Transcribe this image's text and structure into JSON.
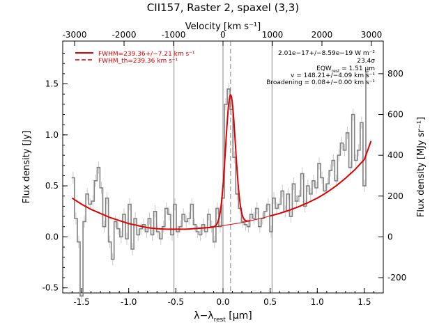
{
  "chart_data": {
    "type": "line",
    "title": "CII157, Raster 2, spaxel (3,3)",
    "xlabel": "λ−λ",
    "xlabel_sub": "rest",
    "xlabel_unit": " [μm]",
    "ylabel": "Flux density [Jy]",
    "top_axis_label": "Velocity [km s⁻¹]",
    "right_axis_label": "Flux density [MJy sr⁻¹]",
    "xlim": [
      -1.7,
      1.7
    ],
    "ylim": [
      -0.55,
      1.92
    ],
    "top_xlim": [
      -3240,
      3240
    ],
    "right_ylim": [
      -275,
      960
    ],
    "x_ticks": [
      "-1.5",
      "-1.0",
      "-0.5",
      "0.0",
      "0.5",
      "1.0",
      "1.5"
    ],
    "x_tick_values": [
      -1.5,
      -1.0,
      -0.5,
      0.0,
      0.5,
      1.0,
      1.5
    ],
    "y_ticks": [
      "-0.5",
      "0.0",
      "0.5",
      "1.0",
      "1.5"
    ],
    "y_tick_values": [
      -0.5,
      0.0,
      0.5,
      1.0,
      1.5
    ],
    "top_ticks": [
      "-3000",
      "-2000",
      "-1000",
      "0",
      "1000",
      "2000",
      "3000"
    ],
    "top_tick_values": [
      -3000,
      -2000,
      -1000,
      0,
      1000,
      2000,
      3000
    ],
    "right_ticks": [
      "-200",
      "0",
      "200",
      "400",
      "600",
      "800"
    ],
    "right_tick_values": [
      -200,
      0,
      200,
      400,
      600,
      800
    ],
    "vertical_lines": [
      -0.52,
      0.0,
      0.52
    ],
    "dashed_vertical_line": 0.08,
    "legend": [
      {
        "label": "FWHM=239.36+/−7.21 km s⁻¹",
        "style": "solid"
      },
      {
        "label": "FWHM_th=239.36 km s⁻¹",
        "style": "dashed"
      }
    ],
    "annotations": [
      "2.01e−17+/−8.59e−19 W m⁻²",
      "23.4σ",
      "EQW",
      "rest",
      " = 1.51 μm",
      "v = 148.21+/−4.09 km s⁻¹",
      "Broadening = 0.08+/−0.00 km s⁻¹"
    ],
    "series": [
      {
        "style": "step",
        "x": [
          -1.59,
          -1.56,
          -1.53,
          -1.5,
          -1.47,
          -1.44,
          -1.41,
          -1.38,
          -1.35,
          -1.32,
          -1.29,
          -1.26,
          -1.23,
          -1.2,
          -1.17,
          -1.14,
          -1.11,
          -1.08,
          -1.05,
          -1.02,
          -0.99,
          -0.96,
          -0.93,
          -0.9,
          -0.87,
          -0.84,
          -0.81,
          -0.78,
          -0.75,
          -0.72,
          -0.69,
          -0.66,
          -0.63,
          -0.6,
          -0.57,
          -0.54,
          -0.51,
          -0.48,
          -0.45,
          -0.42,
          -0.39,
          -0.36,
          -0.33,
          -0.3,
          -0.27,
          -0.24,
          -0.21,
          -0.18,
          -0.15,
          -0.12,
          -0.09,
          -0.06,
          -0.03,
          0.0,
          0.03,
          0.06,
          0.09,
          0.12,
          0.15,
          0.18,
          0.21,
          0.24,
          0.27,
          0.3,
          0.33,
          0.36,
          0.39,
          0.42,
          0.45,
          0.48,
          0.51,
          0.54,
          0.57,
          0.6,
          0.63,
          0.66,
          0.69,
          0.72,
          0.75,
          0.78,
          0.81,
          0.84,
          0.87,
          0.9,
          0.93,
          0.96,
          0.99,
          1.02,
          1.05,
          1.08,
          1.11,
          1.14,
          1.17,
          1.2,
          1.23,
          1.26,
          1.29,
          1.32,
          1.35,
          1.38,
          1.41,
          1.44,
          1.47,
          1.5,
          1.53
        ],
        "values": [
          0.58,
          0.18,
          -0.05,
          -0.58,
          0.15,
          0.42,
          0.32,
          0.35,
          0.55,
          0.68,
          0.48,
          0.1,
          0.38,
          -0.05,
          -0.22,
          0.15,
          0.08,
          0.0,
          0.22,
          -0.02,
          0.32,
          -0.12,
          0.18,
          0.02,
          0.08,
          0.12,
          0.05,
          0.18,
          0.02,
          0.25,
          0.05,
          -0.02,
          0.1,
          0.28,
          0.22,
          0.02,
          0.32,
          0.05,
          0.1,
          0.22,
          0.15,
          0.18,
          0.32,
          0.12,
          0.05,
          0.02,
          0.12,
          0.05,
          0.22,
          0.1,
          -0.05,
          0.28,
          0.1,
          0.38,
          1.3,
          1.45,
          1.25,
          0.78,
          0.42,
          0.28,
          0.15,
          0.12,
          0.1,
          0.22,
          0.18,
          0.28,
          0.1,
          0.18,
          0.25,
          0.32,
          0.05,
          0.38,
          0.28,
          0.32,
          0.45,
          0.25,
          0.42,
          0.2,
          0.52,
          0.35,
          0.4,
          0.62,
          0.3,
          0.5,
          0.42,
          0.55,
          0.48,
          0.72,
          0.58,
          0.45,
          0.52,
          0.65,
          0.75,
          0.55,
          0.8,
          0.92,
          0.85,
          1.02,
          0.68,
          1.2,
          0.75,
          0.85,
          1.12,
          0.5,
          1.62
        ],
        "error": 0.06
      },
      {
        "style": "fit",
        "x": [
          -1.6,
          -1.5,
          -1.4,
          -1.3,
          -1.2,
          -1.1,
          -1.0,
          -0.9,
          -0.8,
          -0.7,
          -0.6,
          -0.5,
          -0.4,
          -0.3,
          -0.2,
          -0.1,
          0.0,
          0.1,
          0.2,
          0.3,
          0.4,
          0.5,
          0.6,
          0.7,
          0.8,
          0.9,
          1.0,
          1.1,
          1.2,
          1.3,
          1.4,
          1.5,
          1.57
        ],
        "values": [
          0.38,
          0.32,
          0.27,
          0.23,
          0.19,
          0.16,
          0.13,
          0.11,
          0.09,
          0.08,
          0.075,
          0.075,
          0.075,
          0.08,
          0.085,
          0.095,
          0.11,
          0.125,
          0.14,
          0.16,
          0.18,
          0.205,
          0.23,
          0.26,
          0.295,
          0.335,
          0.38,
          0.435,
          0.5,
          0.575,
          0.66,
          0.76,
          0.94
        ]
      },
      {
        "style": "gaussian",
        "center": 0.08,
        "amplitude": 1.27,
        "sigma": 0.052
      }
    ]
  }
}
